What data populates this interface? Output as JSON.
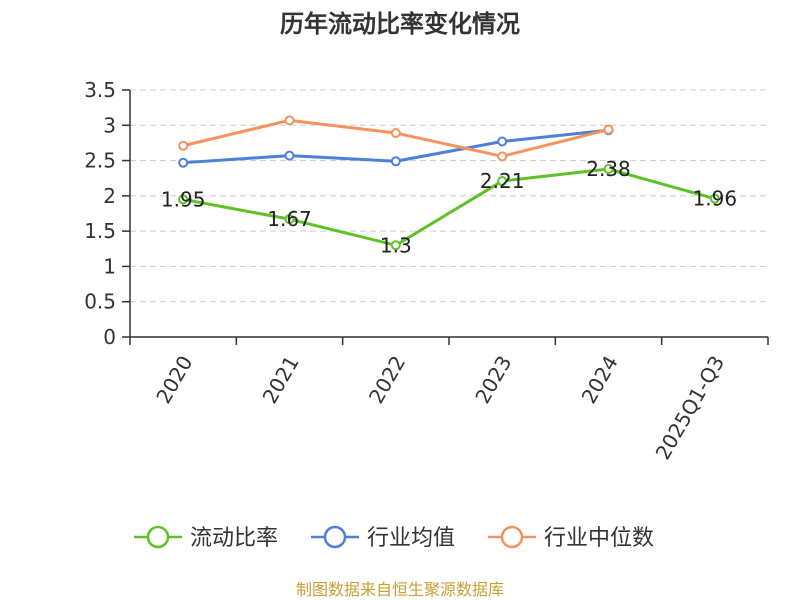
{
  "chart_data": {
    "type": "line",
    "title": "历年流动比率变化情况",
    "categories": [
      "2020",
      "2021",
      "2022",
      "2023",
      "2024",
      "2025Q1-Q3"
    ],
    "ylim": [
      0,
      3.5
    ],
    "yticks": [
      "0",
      "0.5",
      "1",
      "1.5",
      "2",
      "2.5",
      "3",
      "3.5"
    ],
    "grid": true,
    "legend_position": "bottom",
    "series": [
      {
        "name": "流动比率",
        "color": "#5ec226",
        "values": [
          1.95,
          1.67,
          1.3,
          2.21,
          2.38,
          1.96
        ],
        "labels": [
          "1.95",
          "1.67",
          "1.3",
          "2.21",
          "2.38",
          "1.96"
        ]
      },
      {
        "name": "行业均值",
        "color": "#4e7fd9",
        "values": [
          2.47,
          2.57,
          2.49,
          2.77,
          2.93,
          null
        ]
      },
      {
        "name": "行业中位数",
        "color": "#f5925e",
        "values": [
          2.71,
          3.07,
          2.89,
          2.56,
          2.94,
          null
        ]
      }
    ]
  },
  "source": "制图数据来自恒生聚源数据库"
}
